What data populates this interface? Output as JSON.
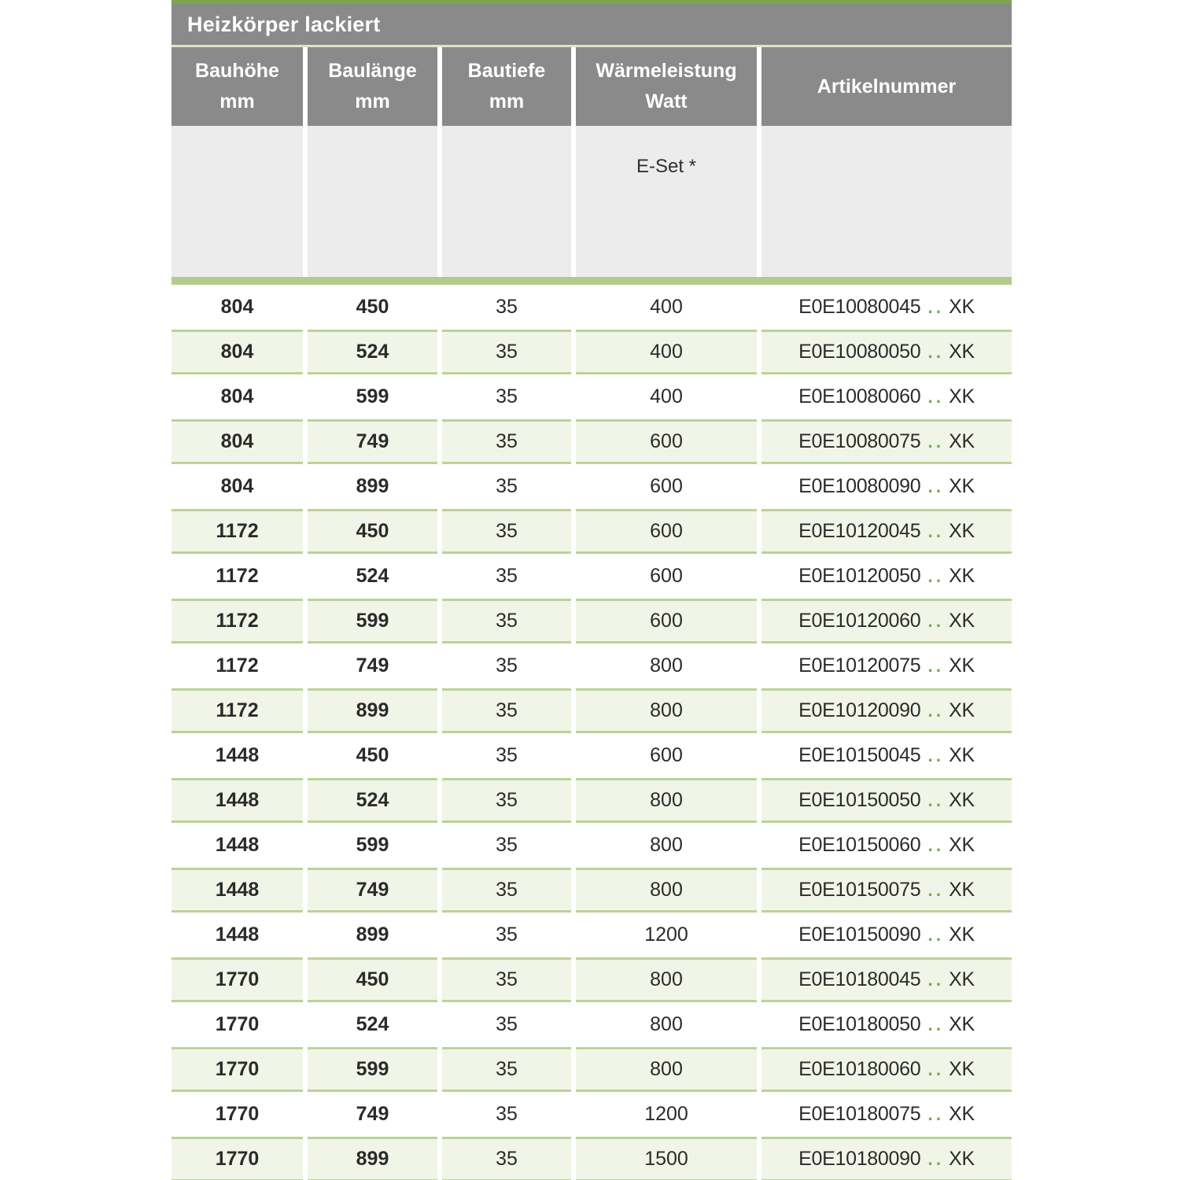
{
  "table": {
    "title": "Heizkörper lackiert",
    "headers": [
      {
        "line1": "Bauhöhe",
        "line2": "mm"
      },
      {
        "line1": "Baulänge",
        "line2": "mm"
      },
      {
        "line1": "Bautiefe",
        "line2": "mm"
      },
      {
        "line1": "Wärmeleistung",
        "line2": "Watt"
      },
      {
        "line1": "Artikelnummer",
        "line2": ""
      }
    ],
    "subheader": {
      "eset_label": "E-Set *"
    },
    "colors": {
      "accent_green": "#7da44f",
      "bar_green": "#b3cc8b",
      "row_green_bg": "#f1f5e7",
      "row_green_border": "#bdd296",
      "header_gray": "#8a8a8a",
      "subheader_gray": "#ececec"
    },
    "rows": [
      {
        "bauhoehe": "804",
        "baulaenge": "450",
        "bautiefe": "35",
        "watt": "400",
        "artikel_code": "E0E10080045",
        "artikel_dots": "..",
        "artikel_suffix": "XK",
        "shaded": false
      },
      {
        "bauhoehe": "804",
        "baulaenge": "524",
        "bautiefe": "35",
        "watt": "400",
        "artikel_code": "E0E10080050",
        "artikel_dots": "..",
        "artikel_suffix": "XK",
        "shaded": true
      },
      {
        "bauhoehe": "804",
        "baulaenge": "599",
        "bautiefe": "35",
        "watt": "400",
        "artikel_code": "E0E10080060",
        "artikel_dots": "..",
        "artikel_suffix": "XK",
        "shaded": false
      },
      {
        "bauhoehe": "804",
        "baulaenge": "749",
        "bautiefe": "35",
        "watt": "600",
        "artikel_code": "E0E10080075",
        "artikel_dots": "..",
        "artikel_suffix": "XK",
        "shaded": true
      },
      {
        "bauhoehe": "804",
        "baulaenge": "899",
        "bautiefe": "35",
        "watt": "600",
        "artikel_code": "E0E10080090",
        "artikel_dots": "..",
        "artikel_suffix": "XK",
        "shaded": false
      },
      {
        "bauhoehe": "1172",
        "baulaenge": "450",
        "bautiefe": "35",
        "watt": "600",
        "artikel_code": "E0E10120045",
        "artikel_dots": "..",
        "artikel_suffix": "XK",
        "shaded": true
      },
      {
        "bauhoehe": "1172",
        "baulaenge": "524",
        "bautiefe": "35",
        "watt": "600",
        "artikel_code": "E0E10120050",
        "artikel_dots": "..",
        "artikel_suffix": "XK",
        "shaded": false
      },
      {
        "bauhoehe": "1172",
        "baulaenge": "599",
        "bautiefe": "35",
        "watt": "600",
        "artikel_code": "E0E10120060",
        "artikel_dots": "..",
        "artikel_suffix": "XK",
        "shaded": true
      },
      {
        "bauhoehe": "1172",
        "baulaenge": "749",
        "bautiefe": "35",
        "watt": "800",
        "artikel_code": "E0E10120075",
        "artikel_dots": "..",
        "artikel_suffix": "XK",
        "shaded": false
      },
      {
        "bauhoehe": "1172",
        "baulaenge": "899",
        "bautiefe": "35",
        "watt": "800",
        "artikel_code": "E0E10120090",
        "artikel_dots": "..",
        "artikel_suffix": "XK",
        "shaded": true
      },
      {
        "bauhoehe": "1448",
        "baulaenge": "450",
        "bautiefe": "35",
        "watt": "600",
        "artikel_code": "E0E10150045",
        "artikel_dots": "..",
        "artikel_suffix": "XK",
        "shaded": false
      },
      {
        "bauhoehe": "1448",
        "baulaenge": "524",
        "bautiefe": "35",
        "watt": "800",
        "artikel_code": "E0E10150050",
        "artikel_dots": "..",
        "artikel_suffix": "XK",
        "shaded": true
      },
      {
        "bauhoehe": "1448",
        "baulaenge": "599",
        "bautiefe": "35",
        "watt": "800",
        "artikel_code": "E0E10150060",
        "artikel_dots": "..",
        "artikel_suffix": "XK",
        "shaded": false
      },
      {
        "bauhoehe": "1448",
        "baulaenge": "749",
        "bautiefe": "35",
        "watt": "800",
        "artikel_code": "E0E10150075",
        "artikel_dots": "..",
        "artikel_suffix": "XK",
        "shaded": true
      },
      {
        "bauhoehe": "1448",
        "baulaenge": "899",
        "bautiefe": "35",
        "watt": "1200",
        "artikel_code": "E0E10150090",
        "artikel_dots": "..",
        "artikel_suffix": "XK",
        "shaded": false
      },
      {
        "bauhoehe": "1770",
        "baulaenge": "450",
        "bautiefe": "35",
        "watt": "800",
        "artikel_code": "E0E10180045",
        "artikel_dots": "..",
        "artikel_suffix": "XK",
        "shaded": true
      },
      {
        "bauhoehe": "1770",
        "baulaenge": "524",
        "bautiefe": "35",
        "watt": "800",
        "artikel_code": "E0E10180050",
        "artikel_dots": "..",
        "artikel_suffix": "XK",
        "shaded": false
      },
      {
        "bauhoehe": "1770",
        "baulaenge": "599",
        "bautiefe": "35",
        "watt": "800",
        "artikel_code": "E0E10180060",
        "artikel_dots": "..",
        "artikel_suffix": "XK",
        "shaded": true
      },
      {
        "bauhoehe": "1770",
        "baulaenge": "749",
        "bautiefe": "35",
        "watt": "1200",
        "artikel_code": "E0E10180075",
        "artikel_dots": "..",
        "artikel_suffix": "XK",
        "shaded": false
      },
      {
        "bauhoehe": "1770",
        "baulaenge": "899",
        "bautiefe": "35",
        "watt": "1500",
        "artikel_code": "E0E10180090",
        "artikel_dots": "..",
        "artikel_suffix": "XK",
        "shaded": true
      }
    ]
  }
}
